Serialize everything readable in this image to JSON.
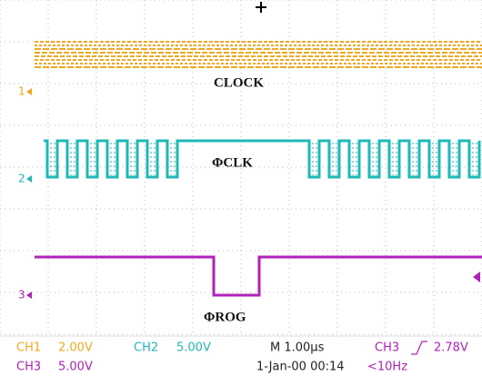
{
  "trace_labels": [
    "CLOCK",
    "ΦCLK",
    "ΦROG"
  ],
  "channel_markers": [
    "1",
    "2",
    "3"
  ],
  "status": {
    "row1": {
      "ch1": "CH1",
      "ch1_scale": "2.00V",
      "ch2": "CH2",
      "ch2_scale": "5.00V",
      "timebase": "M 1.00µs",
      "trigger_source": "CH3",
      "trigger_level": "2.78V"
    },
    "row2": {
      "ch3": "CH3",
      "ch3_scale": "5.00V",
      "datetime": "1-Jan-00 00:14",
      "frequency": "<10Hz"
    }
  }
}
